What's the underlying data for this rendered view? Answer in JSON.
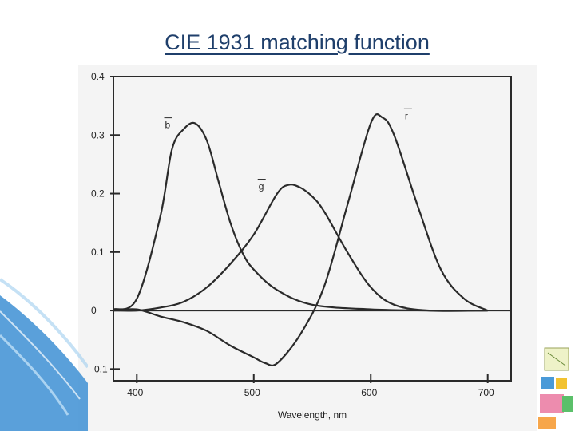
{
  "slide": {
    "title": "CIE 1931 matching function"
  },
  "colors": {
    "title": "#1f3f6b",
    "curve": "#2a2a2a",
    "scan_background": "#f4f4f4",
    "swoosh_blue": "#3d8fd4"
  },
  "chart_data": {
    "type": "line",
    "title": "",
    "xlabel": "Wavelength, nm",
    "ylabel": "",
    "xlim": [
      380,
      720
    ],
    "ylim": [
      -0.12,
      0.4
    ],
    "x_ticks": [
      400,
      500,
      600,
      700
    ],
    "y_ticks": [
      -0.1,
      0,
      0.1,
      0.2,
      0.3,
      0.4
    ],
    "y_tick_labels": [
      "-0.1",
      "0",
      "0.1",
      "0.2",
      "0.3",
      "0.4"
    ],
    "grid": false,
    "series": [
      {
        "name": "b",
        "x": [
          380,
          400,
          420,
          430,
          440,
          450,
          460,
          470,
          480,
          490,
          500,
          520,
          550,
          600,
          650,
          700
        ],
        "values": [
          0.002,
          0.02,
          0.16,
          0.275,
          0.31,
          0.32,
          0.29,
          0.22,
          0.15,
          0.1,
          0.07,
          0.035,
          0.01,
          0.002,
          0.0,
          0.0
        ]
      },
      {
        "name": "g",
        "x": [
          380,
          400,
          420,
          440,
          460,
          480,
          500,
          520,
          530,
          540,
          550,
          560,
          580,
          600,
          620,
          650,
          700
        ],
        "values": [
          0.0,
          0.0,
          0.005,
          0.015,
          0.04,
          0.08,
          0.13,
          0.2,
          0.215,
          0.21,
          0.195,
          0.17,
          0.1,
          0.04,
          0.01,
          0.0,
          0.0
        ]
      },
      {
        "name": "r",
        "x": [
          380,
          400,
          420,
          440,
          460,
          480,
          500,
          510,
          520,
          540,
          560,
          580,
          600,
          610,
          620,
          640,
          660,
          680,
          700
        ],
        "values": [
          0.0,
          0.002,
          -0.01,
          -0.02,
          -0.035,
          -0.06,
          -0.08,
          -0.09,
          -0.09,
          -0.04,
          0.04,
          0.18,
          0.32,
          0.33,
          0.3,
          0.18,
          0.07,
          0.02,
          0.0
        ]
      }
    ]
  }
}
